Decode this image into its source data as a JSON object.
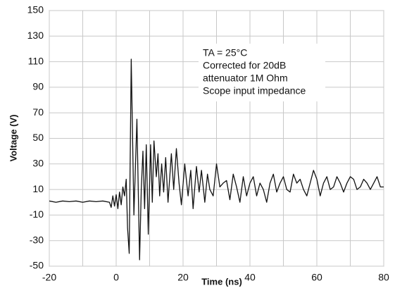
{
  "chart_data": {
    "type": "line",
    "y_label": "Voltage (V)",
    "x_label": "Time (ns)",
    "annotation": [
      "TA = 25°C",
      "Corrected for 20dB",
      "attenuator 1M Ohm",
      "Scope input impedance"
    ],
    "xlim": [
      -20,
      80
    ],
    "xticks": [
      -20,
      0,
      20,
      40,
      60,
      80
    ],
    "xgrid": [
      -20,
      -10,
      0,
      10,
      20,
      30,
      40,
      50,
      60,
      70,
      80
    ],
    "ylim": [
      -50,
      150
    ],
    "yticks": [
      -50,
      -30,
      -10,
      10,
      30,
      50,
      70,
      90,
      110,
      130,
      150
    ],
    "grid": true,
    "color": "#111111",
    "x": [
      -20,
      -18,
      -16,
      -14,
      -12,
      -10,
      -8,
      -6,
      -4,
      -2,
      -1.5,
      -1,
      -0.5,
      0,
      0.5,
      1,
      1.5,
      2,
      2.5,
      3,
      3.4,
      3.9,
      4.5,
      5.3,
      6.2,
      7,
      7.5,
      8,
      8.5,
      9,
      9.6,
      10.3,
      10.8,
      11.3,
      12,
      12.5,
      13,
      13.6,
      14.2,
      14.8,
      15.5,
      16.5,
      17.2,
      18,
      18.8,
      19.5,
      20.5,
      21.5,
      22.3,
      23,
      24,
      24.8,
      25.5,
      26.5,
      27.3,
      28,
      29,
      30,
      31,
      32,
      33,
      34,
      35,
      36,
      37,
      38,
      39,
      40,
      41,
      42,
      43,
      44,
      45,
      46,
      47,
      48,
      49,
      50,
      51,
      52,
      53,
      54,
      55,
      56,
      57,
      58,
      59,
      60,
      61,
      62,
      63,
      64,
      65,
      66,
      67,
      68,
      69,
      70,
      71,
      72,
      73,
      74,
      75,
      76,
      77,
      78,
      79,
      80
    ],
    "values": [
      1,
      0,
      1,
      0.5,
      1,
      0,
      1,
      0.5,
      1,
      0,
      -4,
      5,
      -3,
      6,
      -5,
      8,
      -2,
      12,
      5,
      18,
      -20,
      -40,
      112,
      -10,
      65,
      -45,
      10,
      40,
      -5,
      45,
      -25,
      45,
      0,
      48,
      20,
      38,
      5,
      30,
      8,
      35,
      0,
      38,
      10,
      42,
      15,
      -2,
      30,
      5,
      25,
      -5,
      28,
      8,
      25,
      0,
      22,
      10,
      5,
      30,
      12,
      15,
      17,
      2,
      22,
      12,
      0,
      20,
      5,
      15,
      20,
      5,
      15,
      10,
      0,
      15,
      22,
      8,
      15,
      20,
      10,
      8,
      22,
      15,
      18,
      10,
      5,
      15,
      25,
      18,
      5,
      15,
      20,
      10,
      12,
      20,
      15,
      8,
      15,
      20,
      18,
      10,
      12,
      18,
      15,
      10,
      15,
      20,
      12,
      12
    ]
  }
}
